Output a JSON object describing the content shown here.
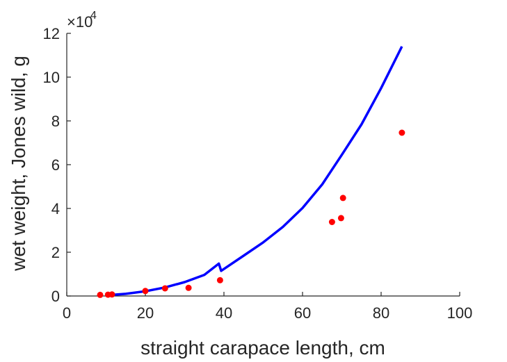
{
  "chart_data": {
    "type": "scatter",
    "xlabel": "straight carapace length, cm",
    "ylabel": "wet weight, Jones wild, g",
    "xlim": [
      0,
      100
    ],
    "ylim": [
      0,
      120000
    ],
    "x_ticks": [
      0,
      20,
      40,
      60,
      80,
      100
    ],
    "y_ticks": [
      0,
      2,
      4,
      6,
      8,
      10,
      12
    ],
    "y_exponent_label": "×10",
    "y_exponent_power": "4",
    "grid": false,
    "series": [
      {
        "type": "scatter",
        "color": "#ff0000",
        "points": [
          [
            8.5,
            500
          ],
          [
            10.5,
            600
          ],
          [
            11.5,
            700
          ],
          [
            20,
            2300
          ],
          [
            25,
            3500
          ],
          [
            31,
            3700
          ],
          [
            39,
            7200
          ],
          [
            67.5,
            33800
          ],
          [
            69.8,
            35600
          ],
          [
            70.3,
            44800
          ],
          [
            85.3,
            74600
          ]
        ]
      },
      {
        "type": "line",
        "color": "#0000ff",
        "points": [
          [
            11.5,
            500
          ],
          [
            15,
            1000
          ],
          [
            20,
            2150
          ],
          [
            25,
            3900
          ],
          [
            30,
            6350
          ],
          [
            35,
            9650
          ],
          [
            38.7,
            14800
          ],
          [
            39.3,
            11500
          ],
          [
            45,
            18400
          ],
          [
            50,
            24500
          ],
          [
            55,
            31600
          ],
          [
            60,
            40200
          ],
          [
            65,
            51000
          ],
          [
            70,
            64500
          ],
          [
            75,
            78400
          ],
          [
            80,
            95000
          ],
          [
            85.3,
            114000
          ]
        ]
      }
    ]
  }
}
